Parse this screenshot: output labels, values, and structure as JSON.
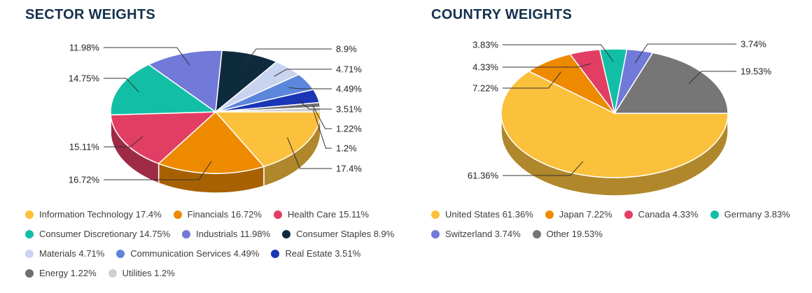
{
  "chart_data": [
    {
      "type": "pie",
      "title": "SECTOR WEIGHTS",
      "unit": "%",
      "style": "3d",
      "start_angle_deg": 0,
      "direction": "clockwise",
      "legend_position": "bottom",
      "slices": [
        {
          "name": "Information Technology",
          "value": 17.4,
          "label": "17.4%",
          "color": "#FBC13C"
        },
        {
          "name": "Financials",
          "value": 16.72,
          "label": "16.72%",
          "color": "#EE8A00"
        },
        {
          "name": "Health Care",
          "value": 15.11,
          "label": "15.11%",
          "color": "#E23E63"
        },
        {
          "name": "Consumer Discretionary",
          "value": 14.75,
          "label": "14.75%",
          "color": "#12BFA6"
        },
        {
          "name": "Industrials",
          "value": 11.98,
          "label": "11.98%",
          "color": "#7179D9"
        },
        {
          "name": "Consumer Staples",
          "value": 8.9,
          "label": "8.9%",
          "color": "#0E2A3D"
        },
        {
          "name": "Materials",
          "value": 4.71,
          "label": "4.71%",
          "color": "#C9D4F0"
        },
        {
          "name": "Communication Services",
          "value": 4.49,
          "label": "4.49%",
          "color": "#5C86DB"
        },
        {
          "name": "Real Estate",
          "value": 3.51,
          "label": "3.51%",
          "color": "#1A35B5"
        },
        {
          "name": "Energy",
          "value": 1.22,
          "label": "1.22%",
          "color": "#6E6E6E"
        },
        {
          "name": "Utilities",
          "value": 1.2,
          "label": "1.2%",
          "color": "#CFCFCF"
        }
      ]
    },
    {
      "type": "pie",
      "title": "COUNTRY WEIGHTS",
      "unit": "%",
      "style": "3d",
      "start_angle_deg": 0,
      "direction": "clockwise",
      "legend_position": "bottom",
      "slices": [
        {
          "name": "United States",
          "value": 61.36,
          "label": "61.36%",
          "color": "#FBC13C"
        },
        {
          "name": "Japan",
          "value": 7.22,
          "label": "7.22%",
          "color": "#EE8A00"
        },
        {
          "name": "Canada",
          "value": 4.33,
          "label": "4.33%",
          "color": "#E23E63"
        },
        {
          "name": "Germany",
          "value": 3.83,
          "label": "3.83%",
          "color": "#12BFA6"
        },
        {
          "name": "Switzerland",
          "value": 3.74,
          "label": "3.74%",
          "color": "#7179D9"
        },
        {
          "name": "Other",
          "value": 19.53,
          "label": "19.53%",
          "color": "#767676"
        }
      ]
    }
  ],
  "colors": {
    "title": "#14304D",
    "legend_text": "#3C3C3C",
    "leader_line": "#333333",
    "percent_label": "#1F1F1F"
  }
}
